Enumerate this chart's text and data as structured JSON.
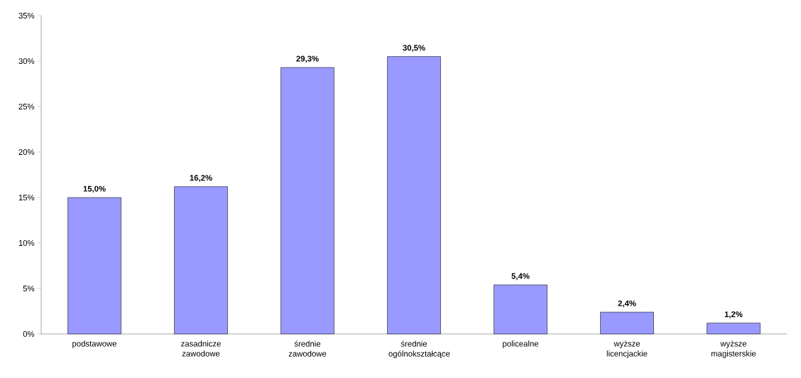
{
  "chart_data": {
    "type": "bar",
    "categories": [
      "podstawowe",
      "zasadnicze zawodowe",
      "średnie zawodowe",
      "średnie ogólnokształcące",
      "policealne",
      "wyższe licencjackie",
      "wyższe magisterskie"
    ],
    "values": [
      15.0,
      16.2,
      29.3,
      30.5,
      5.4,
      2.4,
      1.2
    ],
    "value_labels": [
      "15,0%",
      "16,2%",
      "29,3%",
      "30,5%",
      "5,4%",
      "2,4%",
      "1,2%"
    ],
    "color": "#9999ff",
    "ylim": [
      0,
      35
    ],
    "yticks": [
      {
        "value": 0,
        "label": "0%"
      },
      {
        "value": 5,
        "label": "5%"
      },
      {
        "value": 10,
        "label": "10%"
      },
      {
        "value": 15,
        "label": "15%"
      },
      {
        "value": 20,
        "label": "20%"
      },
      {
        "value": 25,
        "label": "25%"
      },
      {
        "value": 30,
        "label": "30%"
      },
      {
        "value": 35,
        "label": "35%"
      }
    ]
  }
}
